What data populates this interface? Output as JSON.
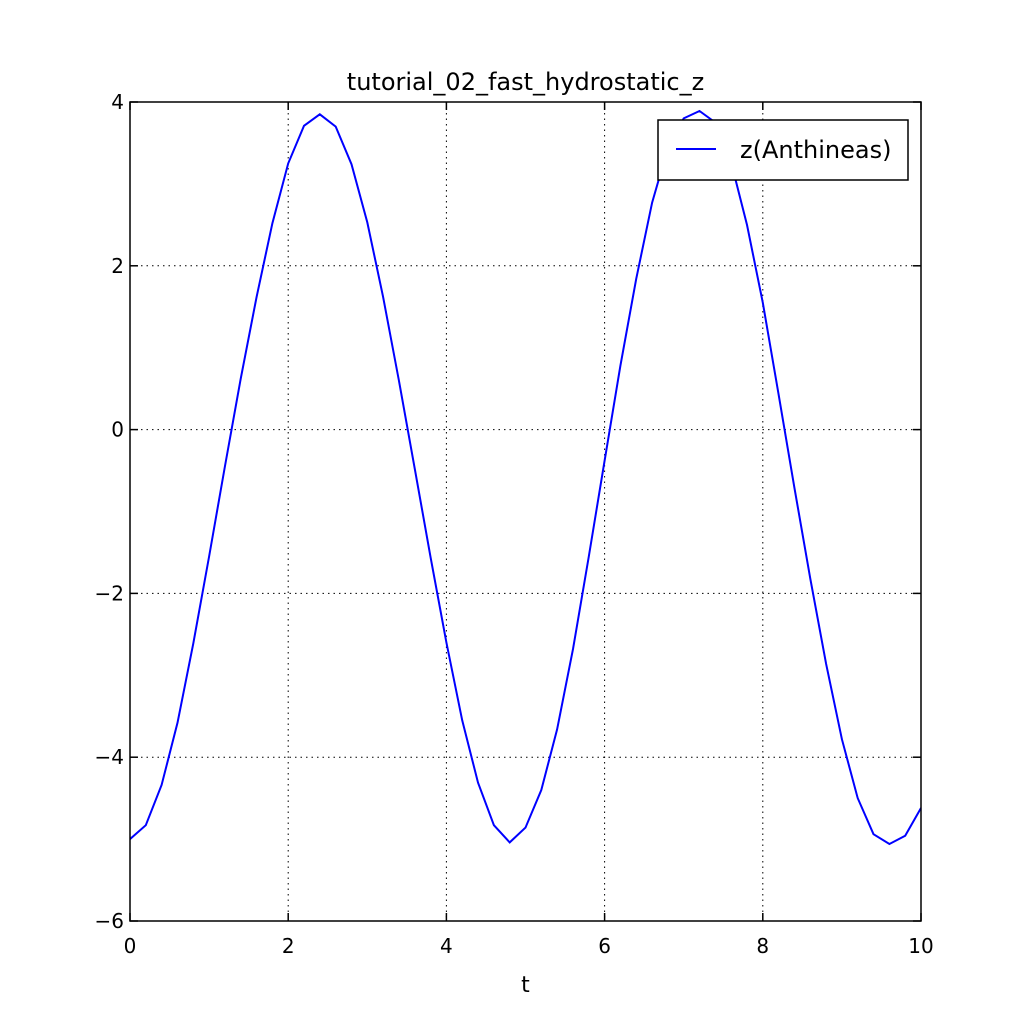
{
  "chart_data": {
    "type": "line",
    "title": "tutorial_02_fast_hydrostatic_z",
    "xlabel": "t",
    "ylabel": "",
    "xlim": [
      0,
      10
    ],
    "ylim": [
      -6,
      4
    ],
    "xticks": [
      0,
      2,
      4,
      6,
      8,
      10
    ],
    "yticks": [
      -6,
      -4,
      -2,
      0,
      2,
      4
    ],
    "xtick_labels": [
      "0",
      "2",
      "4",
      "6",
      "8",
      "10"
    ],
    "ytick_labels": [
      "−6",
      "−4",
      "−2",
      "0",
      "2",
      "4"
    ],
    "grid": true,
    "legend_position": "top-right",
    "series": [
      {
        "name": "z(Anthineas)",
        "color": "#0000ff",
        "x": [
          0,
          0.2,
          0.4,
          0.6,
          0.8,
          1.0,
          1.2,
          1.4,
          1.6,
          1.8,
          2.0,
          2.2,
          2.4,
          2.6,
          2.8,
          3.0,
          3.2,
          3.4,
          3.6,
          3.8,
          4.0,
          4.2,
          4.4,
          4.6,
          4.8,
          5.0,
          5.2,
          5.4,
          5.6,
          5.8,
          6.0,
          6.2,
          6.4,
          6.6,
          6.8,
          7.0,
          7.2,
          7.4,
          7.6,
          7.8,
          8.0,
          8.2,
          8.4,
          8.6,
          8.8,
          9.0,
          9.2,
          9.4,
          9.6,
          9.8,
          10.0
        ],
        "y": [
          -5.0,
          -4.83,
          -4.34,
          -3.58,
          -2.61,
          -1.55,
          -0.45,
          0.62,
          1.62,
          2.52,
          3.25,
          3.71,
          3.85,
          3.7,
          3.24,
          2.53,
          1.62,
          0.6,
          -0.48,
          -1.56,
          -2.6,
          -3.55,
          -4.31,
          -4.83,
          -5.04,
          -4.86,
          -4.4,
          -3.66,
          -2.68,
          -1.55,
          -0.38,
          0.78,
          1.84,
          2.77,
          3.44,
          3.8,
          3.89,
          3.75,
          3.26,
          2.5,
          1.55,
          0.43,
          -0.71,
          -1.82,
          -2.86,
          -3.78,
          -4.5,
          -4.94,
          -5.06,
          -4.96,
          -4.62
        ]
      }
    ]
  }
}
